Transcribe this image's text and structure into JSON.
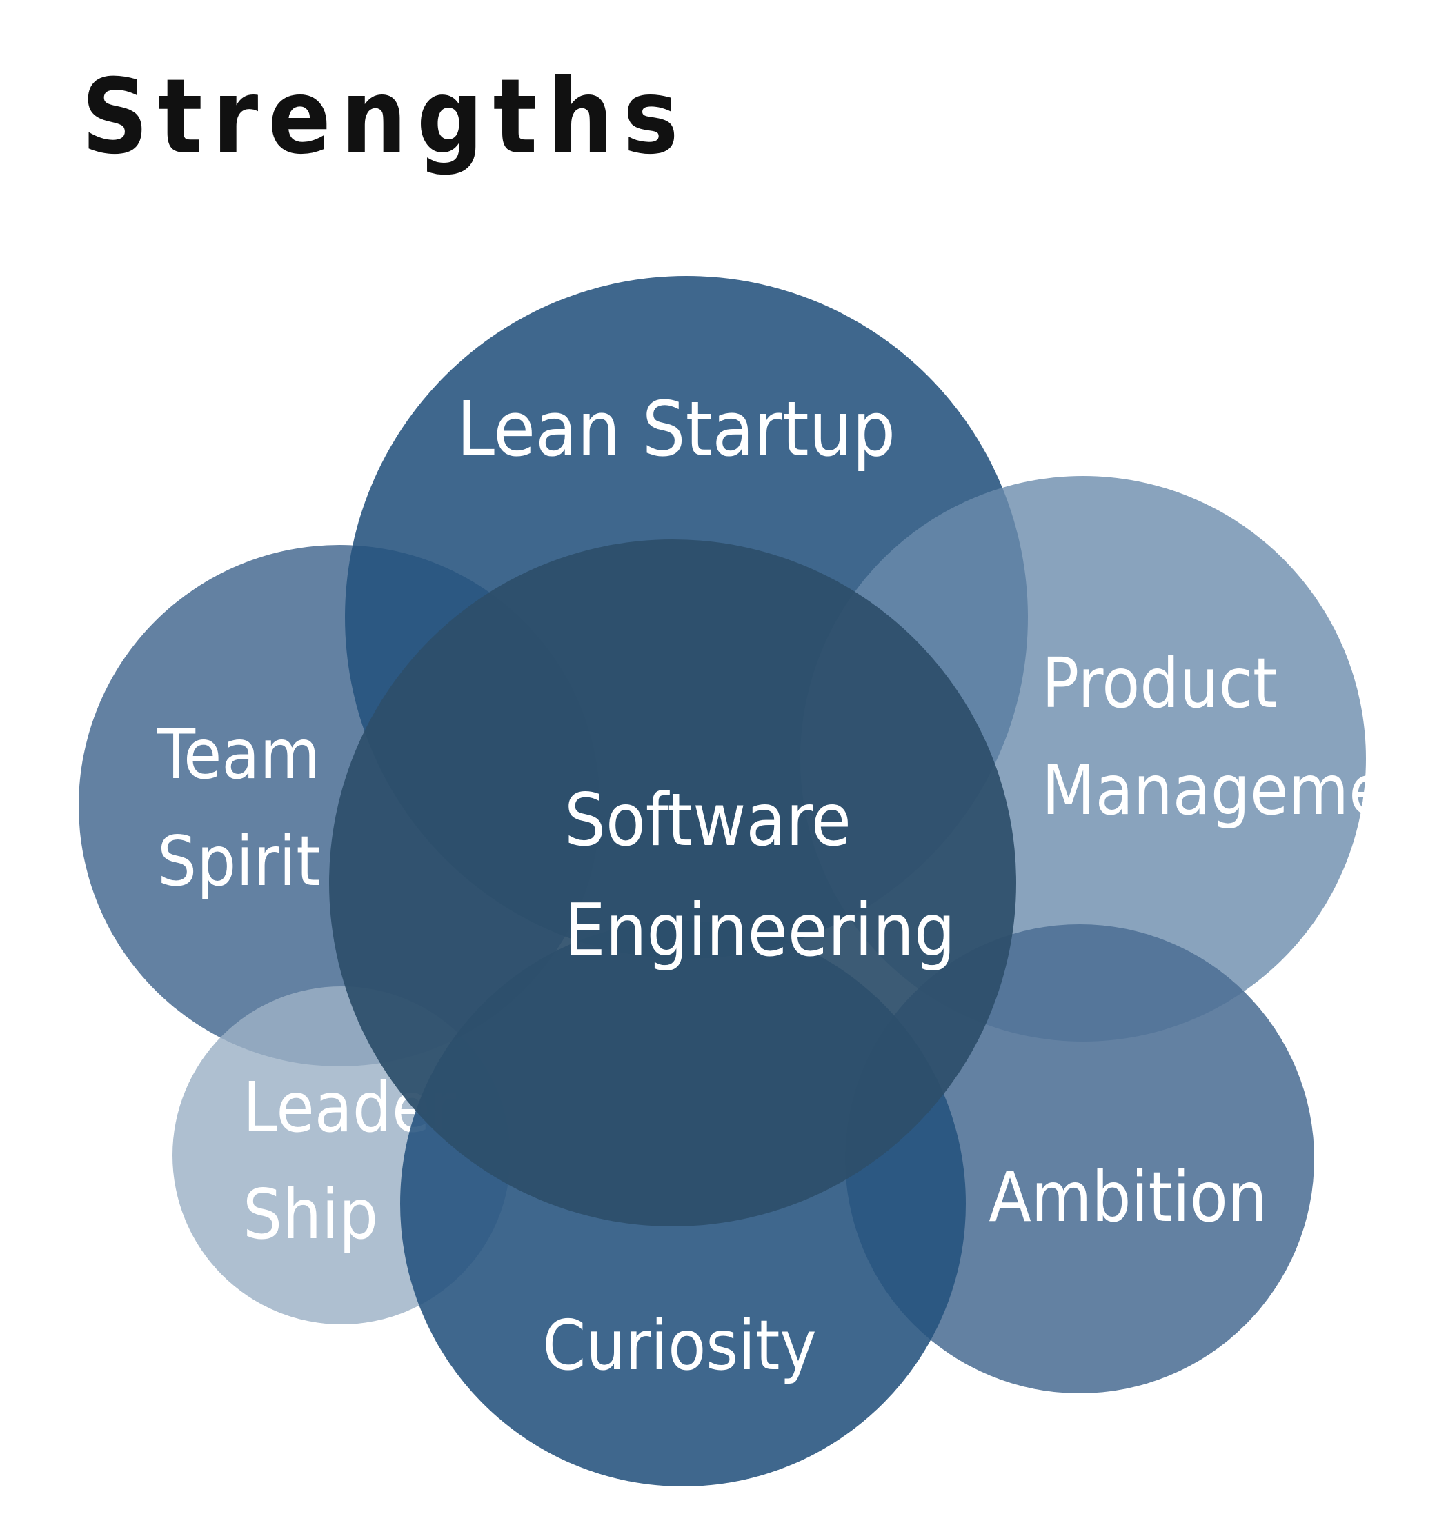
{
  "title": "Strengths",
  "diagram": {
    "type": "overlapping-circles",
    "bubbles": [
      {
        "id": "team-spirit",
        "lines": [
          "Team",
          "Spirit"
        ],
        "color": "#4d7095",
        "opacity": 0.88
      },
      {
        "id": "leadership",
        "lines": [
          "Leader",
          "Ship"
        ],
        "color": "#9cb1c6",
        "opacity": 0.82
      },
      {
        "id": "lean-startup",
        "lines": [
          "Lean Startup"
        ],
        "color": "#24527d",
        "opacity": 0.88
      },
      {
        "id": "product-management",
        "lines": [
          "Product",
          "Management"
        ],
        "color": "#6b8cac",
        "opacity": 0.8
      },
      {
        "id": "ambition",
        "lines": [
          "Ambition"
        ],
        "color": "#4d7095",
        "opacity": 0.88
      },
      {
        "id": "curiosity",
        "lines": [
          "Curiosity"
        ],
        "color": "#24527d",
        "opacity": 0.88
      },
      {
        "id": "software-engineering",
        "lines": [
          "Software",
          "Engineering"
        ],
        "color": "#2d4f6b",
        "opacity": 0.93
      }
    ]
  }
}
